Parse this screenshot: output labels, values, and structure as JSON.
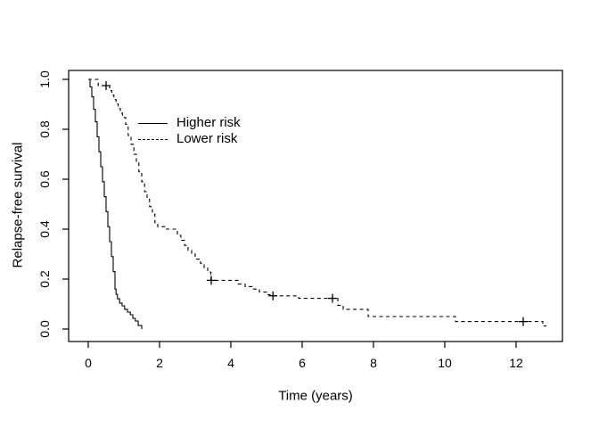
{
  "chart_data": {
    "type": "line",
    "subtype": "kaplan-meier-step",
    "title": "",
    "xlabel": "Time (years)",
    "ylabel": "Relapse-free survival",
    "xlim": [
      -0.55,
      13.3
    ],
    "ylim": [
      -0.05,
      1.0357
    ],
    "grid": false,
    "x_ticks": {
      "values": [
        0,
        2,
        4,
        6,
        8,
        10,
        12
      ],
      "labels": [
        "0",
        "2",
        "4",
        "6",
        "8",
        "10",
        "12"
      ]
    },
    "y_ticks": {
      "values": [
        0.0,
        0.2,
        0.4,
        0.6,
        0.8,
        1.0
      ],
      "labels": [
        "0.0",
        "0.2",
        "0.4",
        "0.6",
        "0.8",
        "1.0"
      ]
    },
    "legend": {
      "position": "upper-left-inside"
    },
    "series": [
      {
        "name": "Higher risk",
        "line_style": "solid",
        "color": "#000000",
        "points": [
          [
            0,
            1.0
          ],
          [
            0.05,
            0.97
          ],
          [
            0.1,
            0.93
          ],
          [
            0.15,
            0.88
          ],
          [
            0.2,
            0.83
          ],
          [
            0.25,
            0.77
          ],
          [
            0.3,
            0.71
          ],
          [
            0.35,
            0.65
          ],
          [
            0.4,
            0.59
          ],
          [
            0.45,
            0.53
          ],
          [
            0.5,
            0.47
          ],
          [
            0.55,
            0.41
          ],
          [
            0.6,
            0.35
          ],
          [
            0.65,
            0.29
          ],
          [
            0.7,
            0.23
          ],
          [
            0.75,
            0.16
          ],
          [
            0.78,
            0.139
          ],
          [
            0.82,
            0.121
          ],
          [
            0.88,
            0.104
          ],
          [
            0.95,
            0.093
          ],
          [
            1.02,
            0.079
          ],
          [
            1.1,
            0.068
          ],
          [
            1.18,
            0.057
          ],
          [
            1.25,
            0.043
          ],
          [
            1.32,
            0.032
          ],
          [
            1.4,
            0.014
          ],
          [
            1.5,
            0.0
          ]
        ],
        "censor_marks": []
      },
      {
        "name": "Lower risk",
        "line_style": "dashed",
        "color": "#000000",
        "points": [
          [
            0,
            1.0
          ],
          [
            0.28,
            0.975
          ],
          [
            0.6,
            0.955
          ],
          [
            0.66,
            0.937
          ],
          [
            0.72,
            0.919
          ],
          [
            0.78,
            0.901
          ],
          [
            0.84,
            0.883
          ],
          [
            0.9,
            0.865
          ],
          [
            0.96,
            0.847
          ],
          [
            1.05,
            0.82
          ],
          [
            1.12,
            0.775
          ],
          [
            1.2,
            0.74
          ],
          [
            1.28,
            0.7
          ],
          [
            1.35,
            0.665
          ],
          [
            1.42,
            0.63
          ],
          [
            1.5,
            0.59
          ],
          [
            1.58,
            0.55
          ],
          [
            1.65,
            0.52
          ],
          [
            1.72,
            0.49
          ],
          [
            1.8,
            0.46
          ],
          [
            1.87,
            0.425
          ],
          [
            1.95,
            0.41
          ],
          [
            2.2,
            0.4
          ],
          [
            2.5,
            0.375
          ],
          [
            2.6,
            0.355
          ],
          [
            2.7,
            0.335
          ],
          [
            2.8,
            0.315
          ],
          [
            2.9,
            0.3
          ],
          [
            3.0,
            0.28
          ],
          [
            3.15,
            0.262
          ],
          [
            3.25,
            0.245
          ],
          [
            3.35,
            0.228
          ],
          [
            3.44,
            0.195
          ],
          [
            4.2,
            0.18
          ],
          [
            4.4,
            0.17
          ],
          [
            4.6,
            0.16
          ],
          [
            4.8,
            0.148
          ],
          [
            5.0,
            0.138
          ],
          [
            5.1,
            0.133
          ],
          [
            5.9,
            0.123
          ],
          [
            7.0,
            0.095
          ],
          [
            7.15,
            0.079
          ],
          [
            7.85,
            0.05
          ],
          [
            10.3,
            0.03
          ],
          [
            12.75,
            0.012
          ],
          [
            12.85,
            0.012
          ]
        ],
        "censor_marks": [
          [
            0.5,
            0.975
          ],
          [
            3.45,
            0.195
          ],
          [
            5.18,
            0.133
          ],
          [
            6.85,
            0.123
          ],
          [
            12.2,
            0.03
          ]
        ]
      }
    ]
  },
  "colors": {
    "background": "#ffffff",
    "foreground": "#000000"
  }
}
